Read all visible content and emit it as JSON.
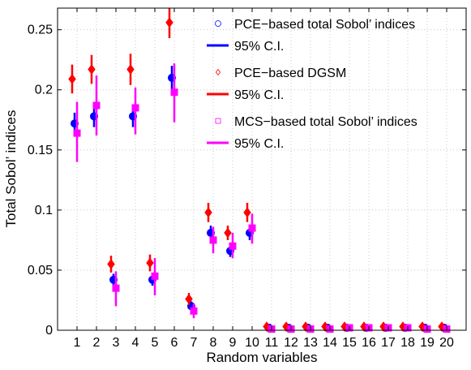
{
  "chart_data": {
    "type": "scatter",
    "title": "",
    "xlabel": "Random variables",
    "ylabel": "Total Sobol’ indices",
    "x": [
      1,
      2,
      3,
      4,
      5,
      6,
      7,
      8,
      9,
      10,
      11,
      12,
      13,
      14,
      15,
      16,
      17,
      18,
      19,
      20
    ],
    "x_tick_labels": [
      "1",
      "2",
      "3",
      "4",
      "5",
      "6",
      "7",
      "8",
      "9",
      "10",
      "11",
      "12",
      "13",
      "14",
      "15",
      "16",
      "17",
      "18",
      "19",
      "20"
    ],
    "y_tick_labels": [
      "0",
      "0.05",
      "0.1",
      "0.15",
      "0.2",
      "0.25"
    ],
    "xlim": [
      0,
      21
    ],
    "ylim": [
      0,
      0.268
    ],
    "grid": true,
    "legend_position": "top-right",
    "series": [
      {
        "name": "PCE−based total Sobol’ indices",
        "ci_name": "95% C.I.",
        "marker": "circle",
        "color": "#0000ff",
        "offset": -0.25,
        "values": [
          0.172,
          0.178,
          0.042,
          0.178,
          0.042,
          0.21,
          0.02,
          0.081,
          0.066,
          0.081,
          0.002,
          0.002,
          0.002,
          0.002,
          0.002,
          0.002,
          0.002,
          0.002,
          0.002,
          0.002
        ],
        "lower": [
          0.163,
          0.169,
          0.037,
          0.169,
          0.037,
          0.199,
          0.016,
          0.075,
          0.061,
          0.075,
          0.0,
          0.0,
          0.0,
          0.0,
          0.0,
          0.0,
          0.0,
          0.0,
          0.0,
          0.0
        ],
        "upper": [
          0.181,
          0.187,
          0.047,
          0.187,
          0.047,
          0.22,
          0.024,
          0.087,
          0.071,
          0.087,
          0.004,
          0.004,
          0.004,
          0.004,
          0.004,
          0.004,
          0.004,
          0.004,
          0.004,
          0.004
        ]
      },
      {
        "name": "PCE−based DGSM",
        "ci_name": "95% C.I.",
        "marker": "diamond",
        "color": "#ff0000",
        "offset": -0.5,
        "values": [
          0.209,
          0.217,
          0.055,
          0.217,
          0.056,
          0.256,
          0.026,
          0.098,
          0.081,
          0.098,
          0.003,
          0.003,
          0.003,
          0.003,
          0.003,
          0.003,
          0.003,
          0.003,
          0.003,
          0.003
        ],
        "lower": [
          0.197,
          0.205,
          0.048,
          0.204,
          0.049,
          0.243,
          0.021,
          0.09,
          0.075,
          0.09,
          0.0,
          0.0,
          0.0,
          0.0,
          0.0,
          0.0,
          0.0,
          0.0,
          0.0,
          0.0
        ],
        "upper": [
          0.221,
          0.229,
          0.062,
          0.23,
          0.063,
          0.268,
          0.031,
          0.106,
          0.087,
          0.106,
          0.006,
          0.006,
          0.006,
          0.006,
          0.006,
          0.006,
          0.006,
          0.006,
          0.006,
          0.006
        ]
      },
      {
        "name": "MCS−based total Sobol’ indices",
        "ci_name": "95% C.I.",
        "marker": "square",
        "color": "#ff00ff",
        "offset": 0.0,
        "values": [
          0.164,
          0.187,
          0.035,
          0.185,
          0.045,
          0.198,
          0.016,
          0.075,
          0.07,
          0.085,
          0.001,
          0.001,
          0.001,
          0.001,
          0.002,
          0.002,
          0.002,
          0.002,
          0.001,
          0.001
        ],
        "lower": [
          0.14,
          0.162,
          0.02,
          0.163,
          0.029,
          0.173,
          0.01,
          0.064,
          0.06,
          0.072,
          0.0,
          0.0,
          0.0,
          0.0,
          0.0,
          0.0,
          0.0,
          0.0,
          0.0,
          0.0
        ],
        "upper": [
          0.19,
          0.212,
          0.049,
          0.202,
          0.06,
          0.222,
          0.022,
          0.086,
          0.081,
          0.097,
          0.004,
          0.004,
          0.004,
          0.004,
          0.004,
          0.004,
          0.004,
          0.004,
          0.004,
          0.004
        ]
      }
    ]
  }
}
